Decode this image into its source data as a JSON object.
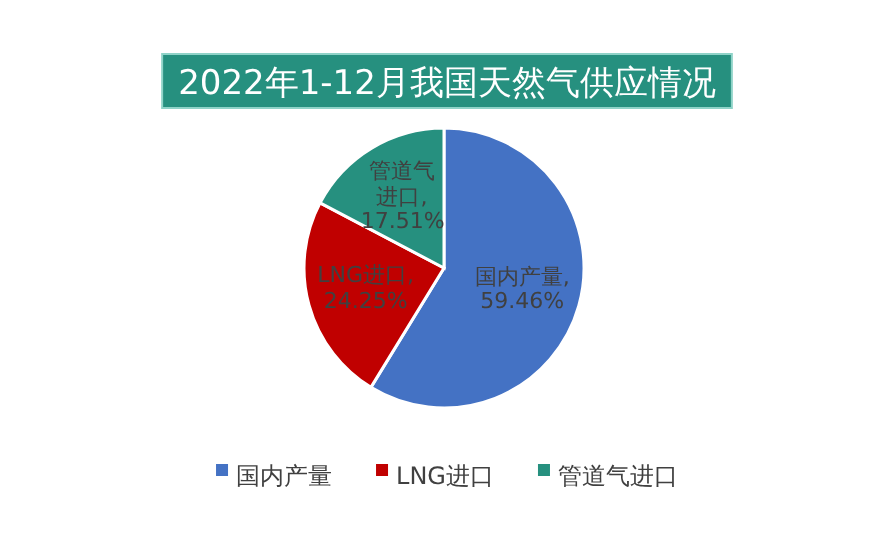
{
  "chart_data": {
    "type": "pie",
    "title": "2022年1-12月我国天然气供应情况",
    "categories": [
      "国内产量",
      "LNG进口",
      "管道气进口"
    ],
    "values": [
      59.46,
      24.25,
      17.51
    ],
    "value_labels": [
      "国内产量, 59.46%",
      "LNG进口, 24.25%",
      "管道气进口, 17.51%"
    ],
    "colors": [
      "#4472c4",
      "#c00000",
      "#26907f"
    ],
    "legend": "bottom"
  }
}
